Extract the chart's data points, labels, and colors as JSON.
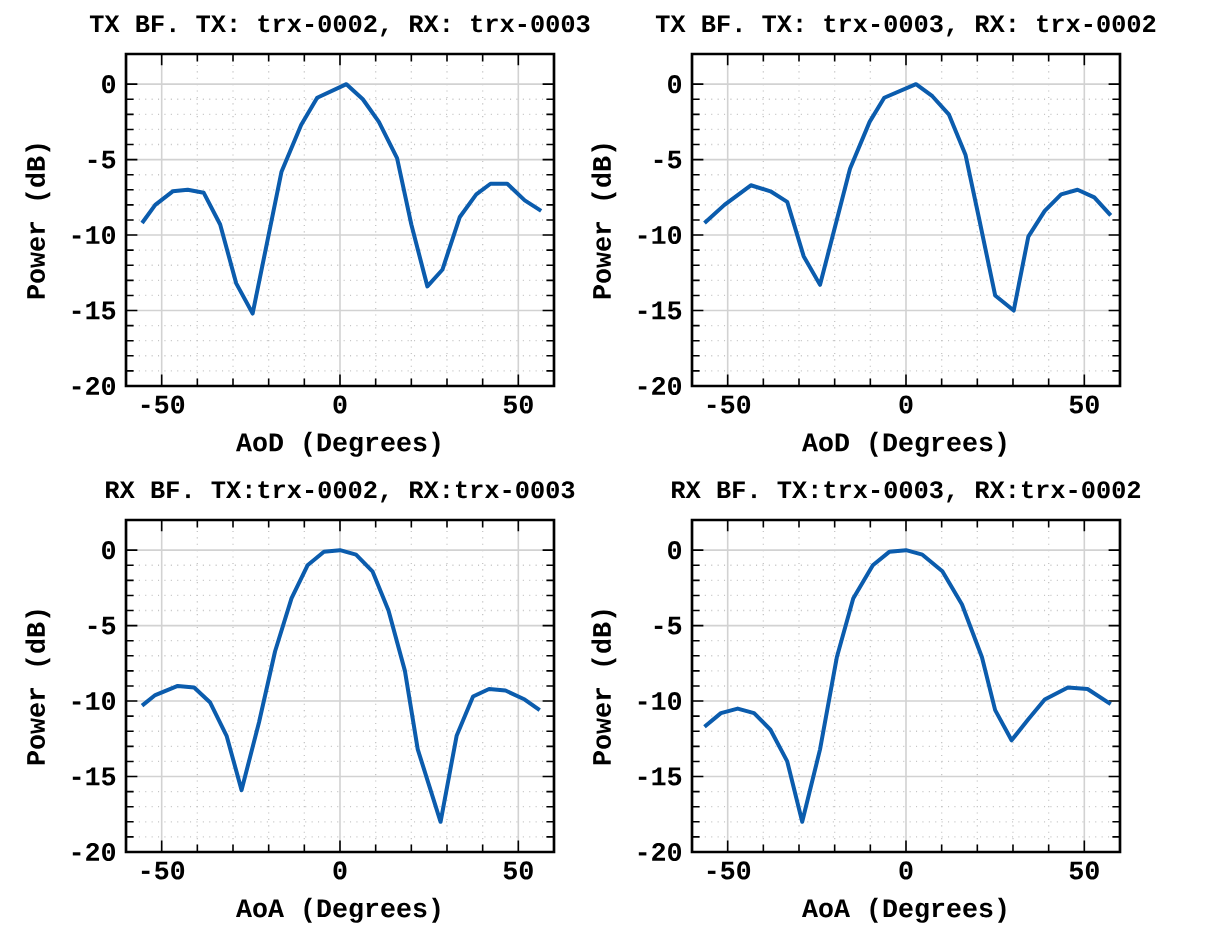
{
  "chart_data": [
    {
      "type": "line",
      "title": "TX BF. TX: trx-0002, RX: trx-0003",
      "xlabel": "AoD (Degrees)",
      "ylabel": "Power (dB)",
      "color": "#0b5cad",
      "grid": true,
      "xlim": [
        -60,
        60
      ],
      "ylim": [
        -20,
        2
      ],
      "xticks": [
        -50,
        0,
        50
      ],
      "yticks": [
        -20,
        -15,
        -10,
        -5,
        0
      ],
      "x": [
        -55.5,
        -51.8,
        -46.9,
        -42.7,
        -38.2,
        -33.6,
        -29.1,
        -24.5,
        -16.4,
        -10.9,
        -6.4,
        1.8,
        6.4,
        10.9,
        16.0,
        20.0,
        24.5,
        28.7,
        33.6,
        38.2,
        42.2,
        46.9,
        51.8,
        56.4
      ],
      "values": [
        -9.2,
        -8.0,
        -7.1,
        -7.0,
        -7.2,
        -9.3,
        -13.2,
        -15.2,
        -5.8,
        -2.7,
        -0.9,
        0,
        -1.0,
        -2.5,
        -4.9,
        -9.3,
        -13.4,
        -12.3,
        -8.8,
        -7.3,
        -6.6,
        -6.6,
        -7.7,
        -8.4
      ]
    },
    {
      "type": "line",
      "title": "TX BF. TX: trx-0003, RX: trx-0002",
      "xlabel": "AoD (Degrees)",
      "ylabel": "Power (dB)",
      "color": "#0b5cad",
      "grid": true,
      "xlim": [
        -60,
        60
      ],
      "ylim": [
        -20,
        2
      ],
      "xticks": [
        -50,
        0,
        50
      ],
      "yticks": [
        -20,
        -15,
        -10,
        -5,
        0
      ],
      "x": [
        -56.5,
        -50.9,
        -43.5,
        -38.0,
        -33.3,
        -28.7,
        -24.1,
        -15.7,
        -10.2,
        -6.1,
        2.8,
        7.4,
        12.0,
        16.7,
        20.4,
        25.0,
        30.2,
        34.3,
        38.9,
        43.5,
        48.1,
        52.8,
        57.4
      ],
      "values": [
        -9.2,
        -8.0,
        -6.7,
        -7.1,
        -7.8,
        -11.4,
        -13.3,
        -5.6,
        -2.5,
        -0.9,
        0,
        -0.8,
        -2.0,
        -4.7,
        -8.8,
        -14.0,
        -15.0,
        -10.1,
        -8.4,
        -7.3,
        -7.0,
        -7.5,
        -8.7
      ]
    },
    {
      "type": "line",
      "title": "RX BF. TX:trx-0002, RX:trx-0003",
      "xlabel": "AoA (Degrees)",
      "ylabel": "Power (dB)",
      "color": "#0b5cad",
      "grid": true,
      "xlim": [
        -60,
        60
      ],
      "ylim": [
        -20,
        2
      ],
      "xticks": [
        -50,
        0,
        50
      ],
      "yticks": [
        -20,
        -15,
        -10,
        -5,
        0
      ],
      "x": [
        -55.5,
        -51.8,
        -45.5,
        -40.9,
        -36.4,
        -31.8,
        -27.6,
        -22.7,
        -18.2,
        -13.6,
        -9.1,
        -4.5,
        0,
        4.5,
        9.1,
        13.6,
        18.2,
        21.8,
        28.2,
        32.7,
        37.3,
        41.8,
        46.4,
        51.8,
        56.0
      ],
      "values": [
        -10.3,
        -9.6,
        -9.0,
        -9.1,
        -10.1,
        -12.3,
        -15.9,
        -11.4,
        -6.7,
        -3.2,
        -1.0,
        -0.1,
        0,
        -0.3,
        -1.4,
        -4.0,
        -8.0,
        -13.2,
        -18.0,
        -12.3,
        -9.7,
        -9.2,
        -9.3,
        -9.9,
        -10.6
      ]
    },
    {
      "type": "line",
      "title": "RX BF. TX:trx-0003, RX:trx-0002",
      "xlabel": "AoA (Degrees)",
      "ylabel": "Power (dB)",
      "color": "#0b5cad",
      "grid": true,
      "xlim": [
        -60,
        60
      ],
      "ylim": [
        -20,
        2
      ],
      "xticks": [
        -50,
        0,
        50
      ],
      "yticks": [
        -20,
        -15,
        -10,
        -5,
        0
      ],
      "x": [
        -56.5,
        -51.9,
        -47.2,
        -42.6,
        -38.0,
        -33.3,
        -29.1,
        -24.1,
        -19.4,
        -14.8,
        -9.3,
        -4.6,
        0,
        4.6,
        10.2,
        15.7,
        21.3,
        25.0,
        29.6,
        34.3,
        38.9,
        45.4,
        50.9,
        57.4
      ],
      "values": [
        -11.7,
        -10.8,
        -10.5,
        -10.8,
        -11.9,
        -14.0,
        -18.0,
        -13.2,
        -7.1,
        -3.2,
        -1.0,
        -0.1,
        0,
        -0.3,
        -1.4,
        -3.6,
        -7.1,
        -10.6,
        -12.6,
        -11.2,
        -9.9,
        -9.1,
        -9.2,
        -10.2
      ]
    }
  ]
}
